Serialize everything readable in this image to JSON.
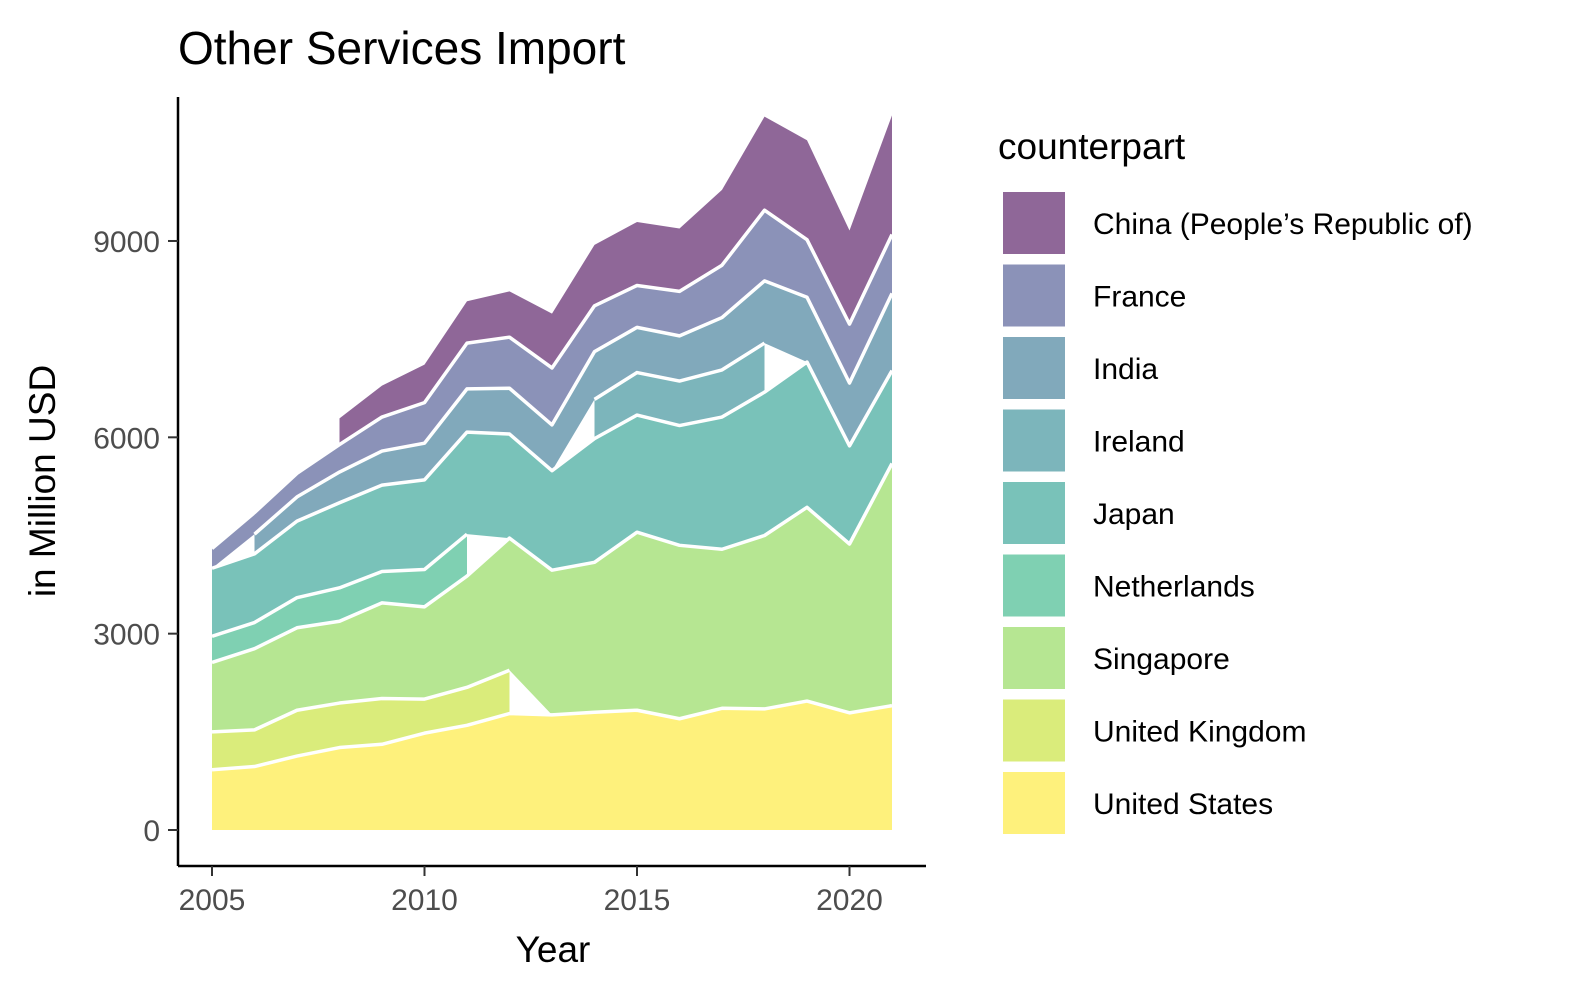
{
  "chart_data": {
    "type": "area",
    "stacked": true,
    "title": "Other Services Import",
    "xlabel": "Year",
    "ylabel": "in Million USD",
    "xlim": [
      2004.2,
      2021.8
    ],
    "ylim": [
      -550,
      11200
    ],
    "xticks": [
      2005,
      2010,
      2015,
      2020
    ],
    "yticks": [
      0,
      3000,
      6000,
      9000
    ],
    "x": [
      2005,
      2006,
      2007,
      2008,
      2009,
      2010,
      2011,
      2012,
      2013,
      2014,
      2015,
      2016,
      2017,
      2018,
      2019,
      2020,
      2021
    ],
    "legend_title": "counterpart",
    "legend_position": "right",
    "series": [
      {
        "name": "United States",
        "color": "#fde725",
        "values": [
          920,
          970,
          1130,
          1260,
          1310,
          1480,
          1600,
          1780,
          1760,
          1800,
          1830,
          1700,
          1860,
          1850,
          1970,
          1790,
          1900
        ]
      },
      {
        "name": "United Kingdom",
        "color": "#c2df23",
        "values": [
          580,
          560,
          700,
          680,
          700,
          520,
          580,
          660,
          null,
          null,
          null,
          null,
          null,
          null,
          null,
          null,
          null
        ]
      },
      {
        "name": "Singapore",
        "color": "#86d549",
        "values": [
          1060,
          1240,
          1260,
          1250,
          1460,
          1410,
          1700,
          2020,
          2210,
          2290,
          2720,
          2650,
          2430,
          2650,
          2960,
          2580,
          3700
        ]
      },
      {
        "name": "Netherlands",
        "color": "#2ab07f",
        "values": [
          400,
          400,
          460,
          510,
          480,
          570,
          640,
          null,
          null,
          null,
          null,
          null,
          null,
          null,
          null,
          null,
          null
        ]
      },
      {
        "name": "Japan",
        "color": "#1f9a8a",
        "values": [
          1040,
          1050,
          1170,
          1300,
          1320,
          1370,
          1560,
          1590,
          1520,
          1890,
          1790,
          1830,
          2020,
          2190,
          2220,
          1500,
          1420
        ]
      },
      {
        "name": "Ireland",
        "color": "#25848e",
        "values": [
          null,
          null,
          null,
          null,
          null,
          null,
          null,
          null,
          null,
          600,
          650,
          680,
          720,
          750,
          null,
          null,
          null
        ]
      },
      {
        "name": "India",
        "color": "#2d708e",
        "values": [
          null,
          300,
          370,
          470,
          520,
          560,
          660,
          700,
          700,
          730,
          690,
          690,
          800,
          950,
          990,
          960,
          1180
        ]
      },
      {
        "name": "France",
        "color": "#3e4a89",
        "values": [
          300,
          330,
          360,
          420,
          520,
          620,
          700,
          780,
          870,
          700,
          640,
          680,
          800,
          1080,
          880,
          900,
          900
        ]
      },
      {
        "name": "China (People’s Republic of)",
        "color": "#440154",
        "values": [
          null,
          null,
          null,
          400,
          480,
          580,
          640,
          700,
          830,
          930,
          970,
          960,
          1150,
          1430,
          1520,
          1430,
          1820
        ]
      }
    ]
  }
}
